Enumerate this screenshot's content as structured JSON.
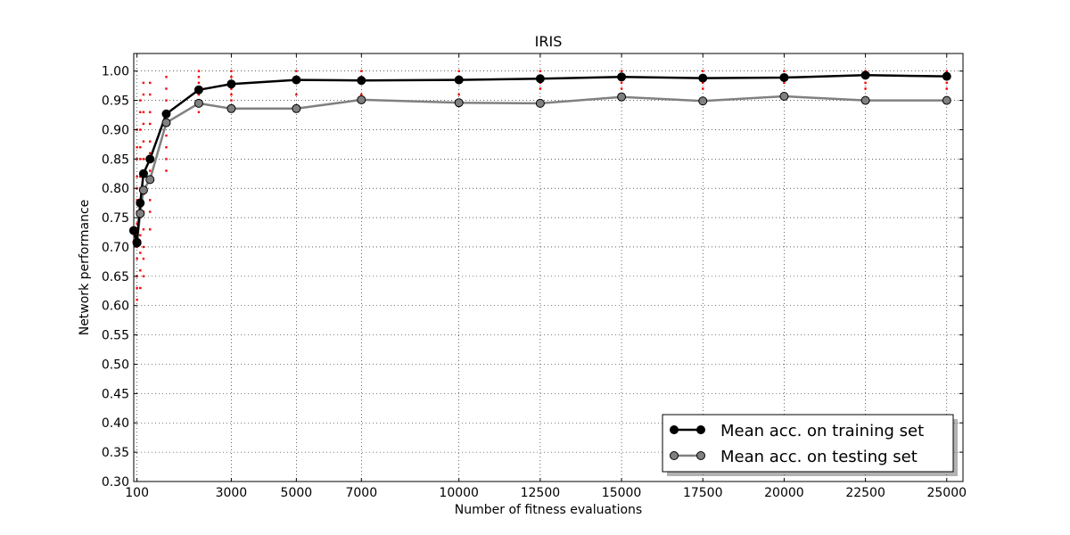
{
  "chart_data": {
    "type": "line",
    "title": "IRIS",
    "xlabel": "Number of fitness evaluations",
    "ylabel": "Network performance",
    "xlim": [
      0,
      25500
    ],
    "ylim": [
      0.3,
      1.03
    ],
    "xticks": [
      100,
      3000,
      5000,
      7000,
      10000,
      12500,
      15000,
      17500,
      20000,
      22500,
      25000
    ],
    "xtick_labels": [
      "100",
      "3000",
      "5000",
      "7000",
      "10000",
      "12500",
      "15000",
      "17500",
      "20000",
      "22500",
      "25000"
    ],
    "yticks": [
      0.3,
      0.35,
      0.4,
      0.45,
      0.5,
      0.55,
      0.6,
      0.65,
      0.7,
      0.75,
      0.8,
      0.85,
      0.9,
      0.95,
      1.0
    ],
    "ytick_labels": [
      "0.30",
      "0.35",
      "0.40",
      "0.45",
      "0.50",
      "0.55",
      "0.60",
      "0.65",
      "0.70",
      "0.75",
      "0.80",
      "0.85",
      "0.90",
      "0.95",
      "1.00"
    ],
    "grid": true,
    "legend_position": "bottom-right",
    "x": [
      0,
      100,
      200,
      300,
      500,
      1000,
      2000,
      3000,
      5000,
      7000,
      10000,
      12500,
      15000,
      17500,
      20000,
      22500,
      25000
    ],
    "series": [
      {
        "name": "Mean acc. on training set",
        "color": "#000000",
        "values": [
          0.728,
          0.708,
          0.775,
          0.825,
          0.85,
          0.927,
          0.968,
          0.978,
          0.985,
          0.984,
          0.985,
          0.987,
          0.99,
          0.988,
          0.989,
          0.993,
          0.991
        ]
      },
      {
        "name": "Mean acc. on testing set",
        "color": "#808080",
        "values": [
          0.728,
          0.707,
          0.757,
          0.797,
          0.815,
          0.912,
          0.945,
          0.936,
          0.936,
          0.951,
          0.946,
          0.945,
          0.956,
          0.949,
          0.957,
          0.95,
          0.95
        ]
      }
    ],
    "individual_runs": {
      "color": "#ff0000",
      "points": [
        {
          "x": 0,
          "values": [
            0.73,
            0.71
          ]
        },
        {
          "x": 100,
          "values": [
            0.61,
            0.63,
            0.65,
            0.68,
            0.7,
            0.72,
            0.74,
            0.76,
            0.78,
            0.8,
            0.82,
            0.85,
            0.87,
            0.9
          ]
        },
        {
          "x": 200,
          "values": [
            0.63,
            0.66,
            0.69,
            0.72,
            0.75,
            0.77,
            0.8,
            0.82,
            0.85,
            0.87,
            0.9,
            0.93,
            0.95
          ]
        },
        {
          "x": 300,
          "values": [
            0.65,
            0.68,
            0.7,
            0.73,
            0.76,
            0.79,
            0.82,
            0.85,
            0.88,
            0.91,
            0.93,
            0.96,
            0.98
          ]
        },
        {
          "x": 500,
          "values": [
            0.73,
            0.76,
            0.78,
            0.81,
            0.83,
            0.86,
            0.88,
            0.91,
            0.93,
            0.96,
            0.98
          ]
        },
        {
          "x": 1000,
          "values": [
            0.83,
            0.85,
            0.87,
            0.89,
            0.91,
            0.93,
            0.95,
            0.97,
            0.99
          ]
        },
        {
          "x": 2000,
          "values": [
            0.93,
            0.95,
            0.96,
            0.97,
            0.98,
            0.99,
            1.0
          ]
        },
        {
          "x": 3000,
          "values": [
            0.95,
            0.96,
            0.97,
            0.98,
            0.99,
            1.0
          ]
        },
        {
          "x": 5000,
          "values": [
            0.96,
            0.98,
            0.99,
            1.0
          ]
        },
        {
          "x": 7000,
          "values": [
            0.96,
            0.98,
            0.99,
            1.0
          ]
        },
        {
          "x": 10000,
          "values": [
            0.96,
            0.98,
            0.99,
            1.0
          ]
        },
        {
          "x": 12500,
          "values": [
            0.97,
            0.98,
            0.99,
            1.0
          ]
        },
        {
          "x": 15000,
          "values": [
            0.97,
            0.98,
            0.99,
            1.0
          ]
        },
        {
          "x": 17500,
          "values": [
            0.97,
            0.98,
            0.99,
            1.0
          ]
        },
        {
          "x": 20000,
          "values": [
            0.96,
            0.98,
            0.99,
            1.0
          ]
        },
        {
          "x": 22500,
          "values": [
            0.97,
            0.98,
            0.99,
            1.0
          ]
        },
        {
          "x": 25000,
          "values": [
            0.97,
            0.98,
            0.99,
            1.0
          ]
        }
      ]
    }
  }
}
